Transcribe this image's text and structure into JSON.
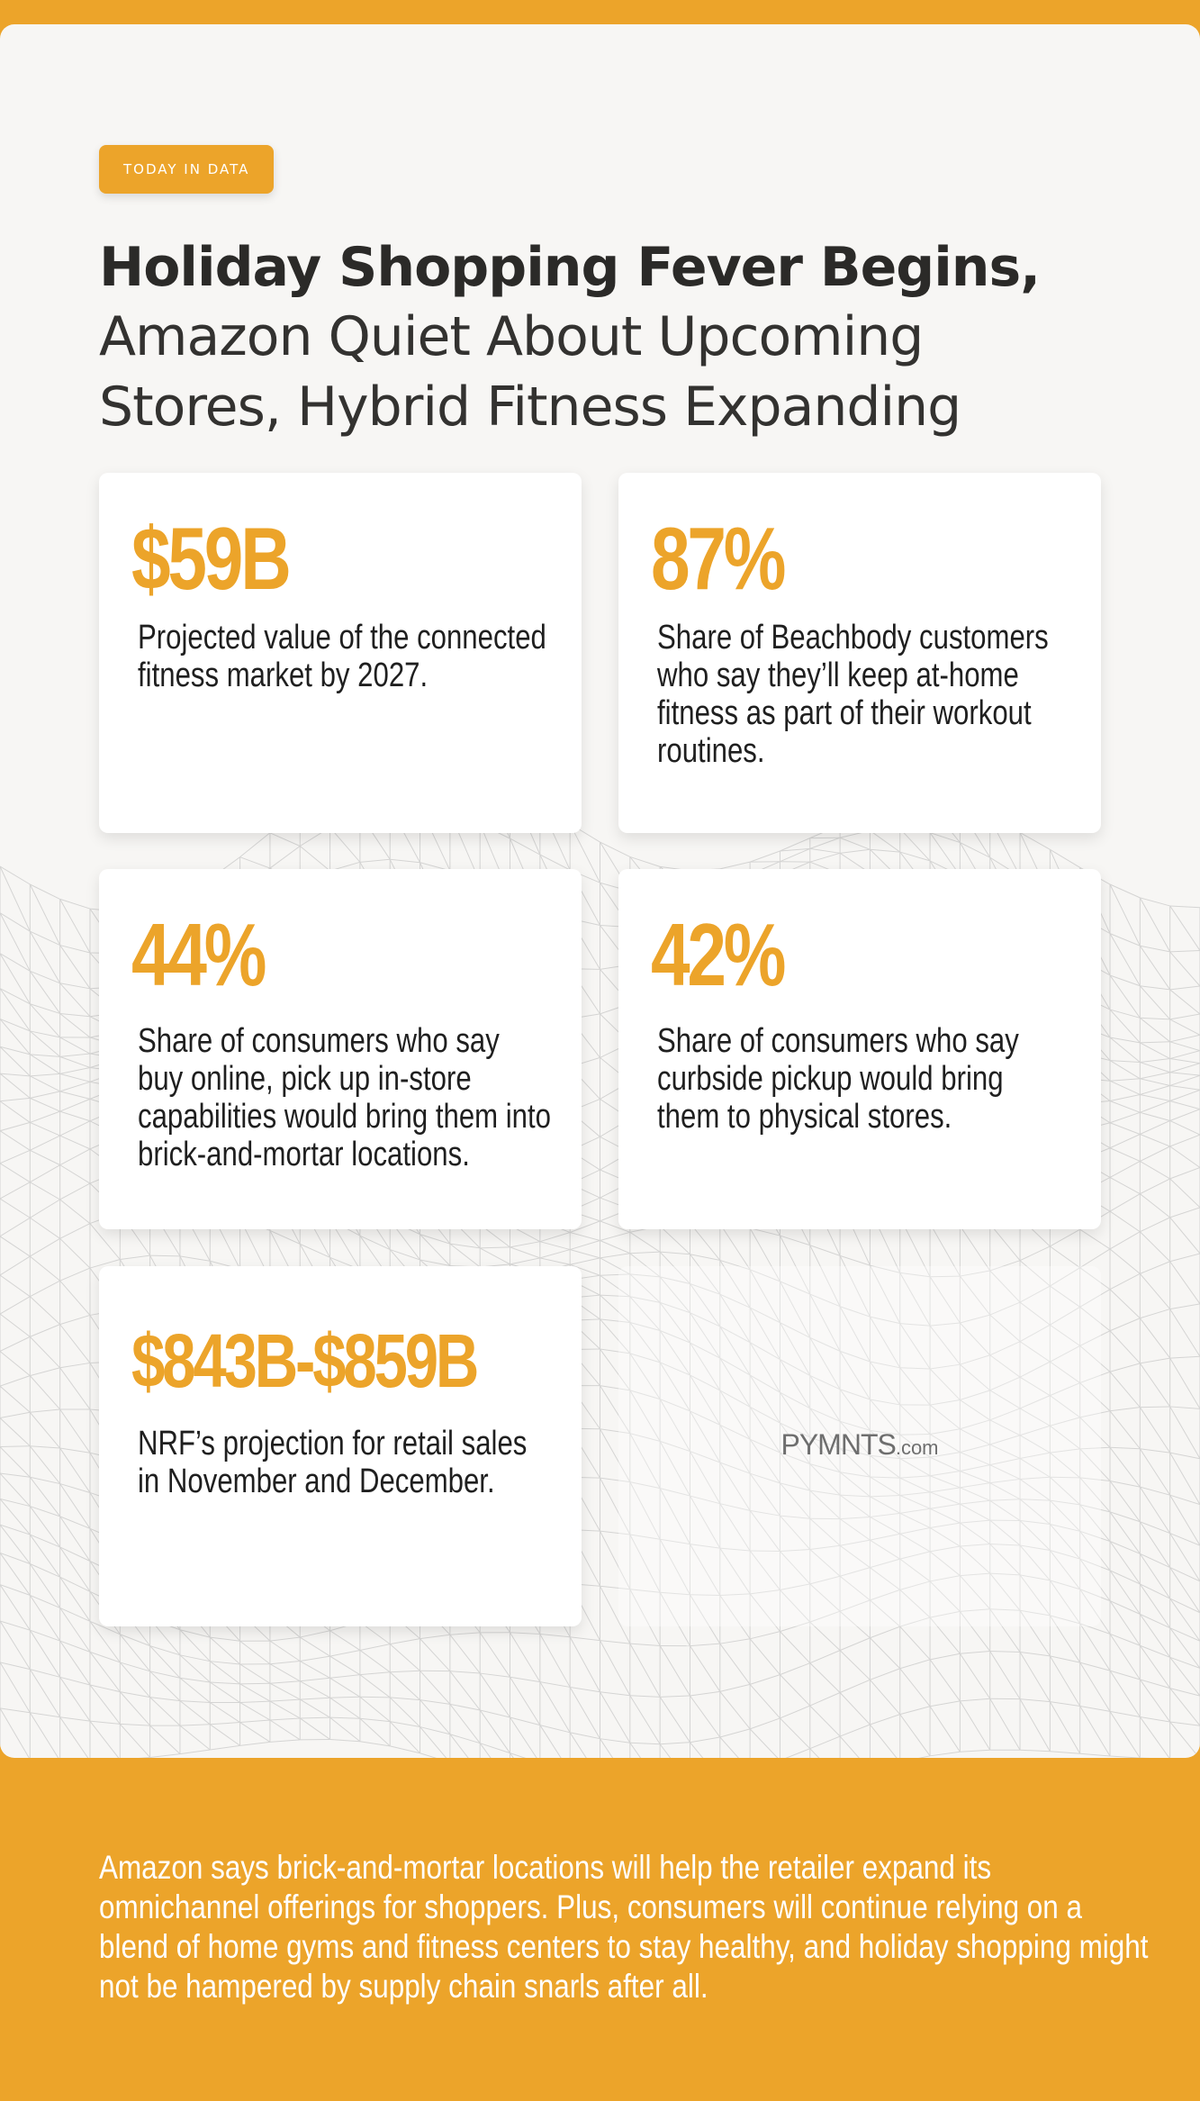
{
  "badge": "TODAY IN DATA",
  "title": {
    "bold_line": "Holiday Shopping Fever Begins,",
    "light_line_1": "Amazon Quiet About Upcoming",
    "light_line_2": "Stores, Hybrid Fitness Expanding"
  },
  "stats": [
    {
      "value": "$59B",
      "description": "Projected value of the connected fitness market by 2027."
    },
    {
      "value": "87%",
      "description": "Share of Beachbody customers who say they’ll keep at-home fitness as part of their workout routines."
    },
    {
      "value": "44%",
      "description": "Share of consumers who say buy online, pick up in-store capabilities would bring them into brick-and-mortar locations."
    },
    {
      "value": "42%",
      "description": "Share of consumers who say curbside pickup would bring them to physical stores."
    },
    {
      "value": "$843B-$859B",
      "description": "NRF’s projection for retail sales in November and December."
    }
  ],
  "logo": {
    "name": "PYMNTS",
    "suffix": ".com"
  },
  "footer": "Amazon says brick-and-mortar locations will help the retailer expand its omnichannel offerings for shoppers. Plus, consumers will continue relying on a blend of home gyms and fitness centers to stay healthy, and holiday shopping might not be hampered by supply chain snarls after all.",
  "colors": {
    "accent": "#eca42a",
    "panel": "#f7f6f4",
    "text": "#2b2a28"
  }
}
